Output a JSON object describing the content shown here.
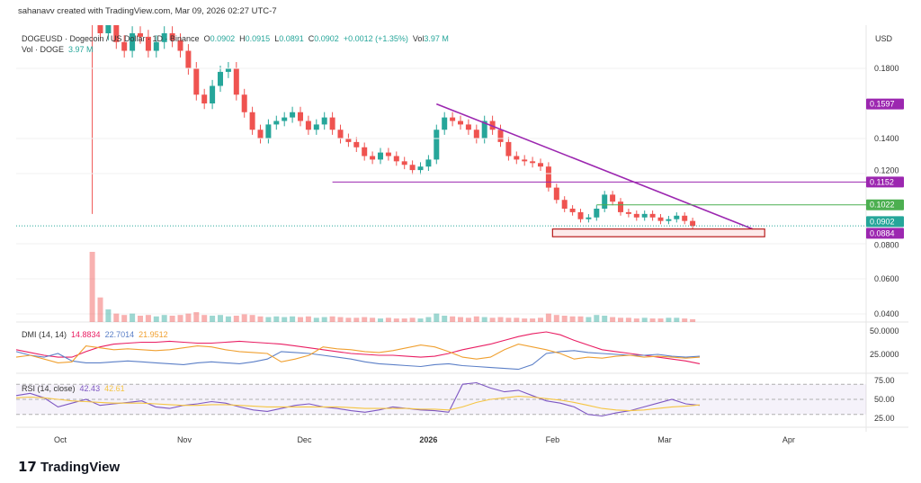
{
  "credit": "sahanavv created with TradingView.com, Mar 09, 2026 02:27 UTC-7",
  "symbol": {
    "name": "DOGEUSD · Dogecoin / US Dollar · 1D · Binance",
    "o_label": "O",
    "o": "0.0902",
    "h_label": "H",
    "h": "0.0915",
    "l_label": "L",
    "l": "0.0891",
    "c_label": "C",
    "c": "0.0902",
    "change": "+0.0012 (+1.35%)",
    "vol_label": "Vol",
    "vol": "3.97 M"
  },
  "volume_legend": {
    "label": "Vol · DOGE",
    "value": "3.97 M"
  },
  "dmi_legend": {
    "label": "DMI (14, 14)",
    "adx": "14.8834",
    "plus_di": "22.7014",
    "minus_di": "21.9512"
  },
  "rsi_legend": {
    "label": "RSI (14, close)",
    "rsi": "42.43",
    "ma": "42.61"
  },
  "axis_currency": "USD",
  "brand": "TradingView",
  "colors": {
    "up": "#26a69a",
    "down": "#ef5350",
    "trend": "#9c27b0",
    "support": "#9c27b0",
    "resistance_green": "#4caf50",
    "last": "#26a69a",
    "adx": "#e91e63",
    "plus_di": "#5b7fc7",
    "minus_di": "#f0a030",
    "rsi": "#7e57c2",
    "rsi_ma": "#f5c542"
  },
  "chart_data": {
    "type": "candlestick",
    "price_axis": {
      "ticks": [
        "0.1800",
        "0.1400",
        "0.1200",
        "0.0800",
        "0.0600",
        "0.0400"
      ],
      "tick_values": [
        0.18,
        0.14,
        0.12,
        0.08,
        0.06,
        0.04
      ]
    },
    "x_ticks": [
      {
        "label": "Oct",
        "date": "2025-10-01"
      },
      {
        "label": "Nov",
        "date": "2025-11-01"
      },
      {
        "label": "Dec",
        "date": "2025-12-01"
      },
      {
        "label": "2026",
        "date": "2026-01-01"
      },
      {
        "label": "Feb",
        "date": "2026-02-01"
      },
      {
        "label": "Mar",
        "date": "2026-03-01"
      },
      {
        "label": "Apr",
        "date": "2026-04-01"
      }
    ],
    "start_date": "2025-10-09",
    "interval_days": 2,
    "closes": [
      0.215,
      0.2,
      0.205,
      0.195,
      0.19,
      0.2,
      0.198,
      0.19,
      0.195,
      0.2,
      0.196,
      0.19,
      0.18,
      0.165,
      0.16,
      0.17,
      0.178,
      0.18,
      0.165,
      0.155,
      0.145,
      0.14,
      0.148,
      0.15,
      0.152,
      0.155,
      0.15,
      0.145,
      0.148,
      0.152,
      0.145,
      0.14,
      0.138,
      0.135,
      0.13,
      0.128,
      0.132,
      0.13,
      0.127,
      0.125,
      0.122,
      0.124,
      0.128,
      0.145,
      0.152,
      0.15,
      0.148,
      0.145,
      0.14,
      0.15,
      0.145,
      0.138,
      0.13,
      0.128,
      0.127,
      0.126,
      0.124,
      0.112,
      0.105,
      0.1,
      0.098,
      0.094,
      0.095,
      0.1,
      0.108,
      0.104,
      0.098,
      0.097,
      0.095,
      0.097,
      0.095,
      0.093,
      0.094,
      0.096,
      0.093,
      0.0902
    ],
    "first_candle_low": 0.097,
    "volume_relative": [
      1.0,
      0.35,
      0.18,
      0.12,
      0.1,
      0.12,
      0.09,
      0.1,
      0.08,
      0.1,
      0.09,
      0.1,
      0.12,
      0.14,
      0.1,
      0.09,
      0.1,
      0.08,
      0.09,
      0.11,
      0.1,
      0.08,
      0.07,
      0.08,
      0.07,
      0.08,
      0.07,
      0.08,
      0.06,
      0.07,
      0.08,
      0.07,
      0.06,
      0.06,
      0.07,
      0.06,
      0.05,
      0.06,
      0.05,
      0.05,
      0.06,
      0.05,
      0.07,
      0.12,
      0.09,
      0.08,
      0.07,
      0.06,
      0.08,
      0.07,
      0.06,
      0.07,
      0.06,
      0.06,
      0.05,
      0.05,
      0.06,
      0.12,
      0.1,
      0.09,
      0.08,
      0.08,
      0.07,
      0.1,
      0.09,
      0.07,
      0.06,
      0.06,
      0.05,
      0.06,
      0.05,
      0.05,
      0.06,
      0.06,
      0.05,
      0.04
    ],
    "dmi": {
      "axis": [
        "50.0000",
        "25.0000"
      ],
      "adx": [
        30,
        27,
        24,
        22,
        22,
        28,
        33,
        36,
        37,
        38,
        38,
        39,
        38,
        37,
        37,
        38,
        39,
        38,
        37,
        36,
        34,
        32,
        30,
        28,
        26,
        25,
        24,
        24,
        23,
        22,
        23,
        26,
        30,
        33,
        36,
        40,
        44,
        47,
        49,
        46,
        40,
        35,
        30,
        28,
        26,
        24,
        22,
        20,
        18,
        15
      ],
      "plus_di": [
        28,
        24,
        22,
        26,
        18,
        16,
        16,
        17,
        18,
        17,
        16,
        15,
        14,
        16,
        17,
        16,
        15,
        17,
        20,
        28,
        27,
        26,
        24,
        22,
        20,
        17,
        15,
        14,
        13,
        12,
        14,
        15,
        13,
        12,
        11,
        10,
        9,
        14,
        26,
        28,
        29,
        27,
        26,
        25,
        24,
        24,
        25,
        23,
        22,
        23
      ],
      "minus_di": [
        22,
        24,
        20,
        16,
        17,
        34,
        32,
        30,
        31,
        30,
        29,
        30,
        32,
        34,
        33,
        30,
        28,
        27,
        26,
        17,
        20,
        24,
        33,
        31,
        30,
        28,
        27,
        29,
        32,
        35,
        33,
        28,
        22,
        20,
        22,
        30,
        36,
        33,
        30,
        26,
        20,
        22,
        21,
        23,
        24,
        22,
        23,
        22,
        21,
        22
      ]
    },
    "rsi": {
      "axis": [
        "75.00",
        "50.00",
        "25.00"
      ],
      "values": [
        55,
        58,
        52,
        40,
        45,
        50,
        42,
        44,
        46,
        48,
        40,
        38,
        42,
        44,
        47,
        45,
        40,
        36,
        34,
        38,
        42,
        44,
        40,
        38,
        35,
        33,
        36,
        40,
        38,
        36,
        35,
        33,
        70,
        72,
        65,
        60,
        62,
        55,
        48,
        45,
        40,
        30,
        28,
        32,
        35,
        40,
        45,
        50,
        44,
        42
      ],
      "ma": [
        52,
        53,
        52,
        50,
        48,
        47,
        46,
        45,
        45,
        45,
        44,
        43,
        42,
        42,
        43,
        43,
        42,
        41,
        40,
        40,
        40,
        40,
        40,
        40,
        39,
        38,
        38,
        38,
        38,
        37,
        37,
        36,
        40,
        46,
        50,
        52,
        54,
        53,
        51,
        49,
        46,
        42,
        38,
        36,
        35,
        36,
        38,
        40,
        41,
        42.6
      ]
    },
    "drawings": {
      "trendline": {
        "from": {
          "date": "2026-01-03",
          "price": 0.1597
        },
        "to": {
          "date": "2026-03-23",
          "price": 0.0884
        }
      },
      "horizontal_resistance": {
        "from_date": "2025-12-08",
        "price": 0.1152
      },
      "green_level": {
        "from_date": "2026-02-12",
        "price": 0.1022
      },
      "support_box": {
        "from_date": "2026-02-01",
        "to_date": "2026-03-26",
        "top": 0.0884,
        "bottom": 0.084
      }
    },
    "price_tags": [
      "0.1597",
      "0.1152",
      "0.1022",
      "0.0902",
      "0.0884"
    ]
  }
}
